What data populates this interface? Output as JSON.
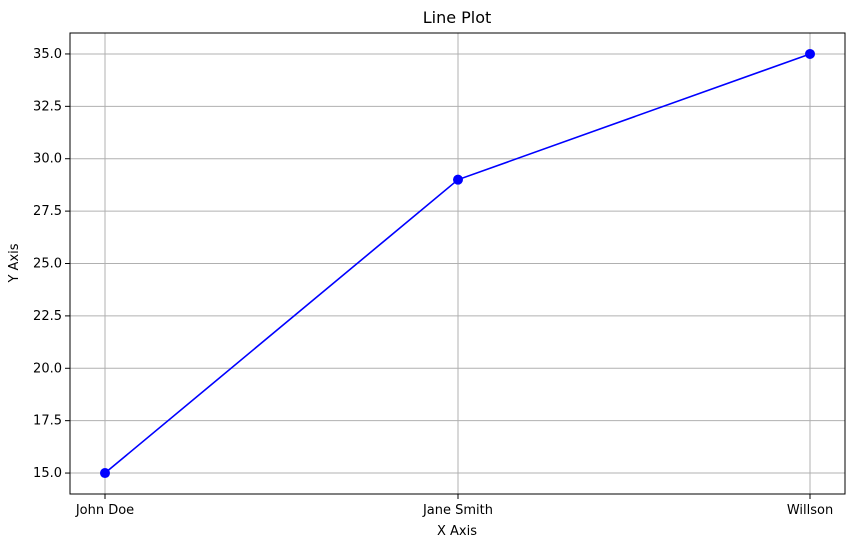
{
  "chart_data": {
    "type": "line",
    "title": "Line Plot",
    "xlabel": "X Axis",
    "ylabel": "Y Axis",
    "categories": [
      "John Doe",
      "Jane Smith",
      "Willson"
    ],
    "series": [
      {
        "values": [
          15,
          29,
          35
        ],
        "color": "#0000ff",
        "marker": "circle"
      }
    ],
    "ylim": [
      14.0,
      36.0
    ],
    "yticks": [
      "15.0",
      "17.5",
      "20.0",
      "22.5",
      "25.0",
      "27.5",
      "30.0",
      "32.5",
      "35.0"
    ],
    "ytick_values": [
      15,
      17.5,
      20,
      22.5,
      25,
      27.5,
      30,
      32.5,
      35
    ],
    "grid": true
  }
}
